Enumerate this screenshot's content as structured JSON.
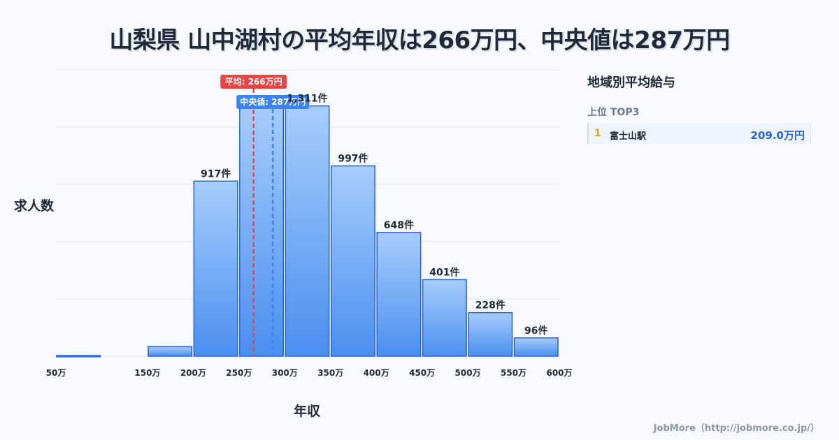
{
  "title": "山梨県 山中湖村の平均年収は266万円、中央値は287万円",
  "sidebar": {
    "title": "地域別平均給与",
    "subtitle": "上位 TOP3",
    "items": [
      {
        "rank": "1",
        "name": "富士山駅",
        "value": "209.0万円"
      }
    ]
  },
  "footer": "JobMore（http://jobmore.co.jp/）",
  "colors": {
    "bar_top": "#a7cdfb",
    "bar_bottom": "#4a8ff0",
    "bar_stroke": "#2563d9",
    "mean": "#e84545",
    "median": "#3b82f6"
  },
  "chart_data": {
    "type": "bar",
    "xlabel": "年収",
    "ylabel": "求人数",
    "x_ticks": [
      "50万",
      "150万",
      "200万",
      "250万",
      "300万",
      "350万",
      "400万",
      "450万",
      "500万",
      "550万",
      "600万"
    ],
    "bins": [
      {
        "from": 50,
        "to": 100,
        "value": 4,
        "label": ""
      },
      {
        "from": 100,
        "to": 150,
        "value": 0,
        "label": ""
      },
      {
        "from": 150,
        "to": 200,
        "value": 50,
        "label": ""
      },
      {
        "from": 200,
        "to": 250,
        "value": 917,
        "label": "917件"
      },
      {
        "from": 250,
        "to": 300,
        "value": 1324,
        "label": ""
      },
      {
        "from": 300,
        "to": 350,
        "value": 1311,
        "label": "1,311件"
      },
      {
        "from": 350,
        "to": 400,
        "value": 997,
        "label": "997件"
      },
      {
        "from": 400,
        "to": 450,
        "value": 648,
        "label": "648件"
      },
      {
        "from": 450,
        "to": 500,
        "value": 401,
        "label": "401件"
      },
      {
        "from": 500,
        "to": 550,
        "value": 228,
        "label": "228件"
      },
      {
        "from": 550,
        "to": 600,
        "value": 96,
        "label": "96件"
      }
    ],
    "mean": {
      "value": 266,
      "label": "平均: 266万円"
    },
    "median": {
      "value": 287,
      "label": "中央値: 287万円"
    },
    "xlim": [
      50,
      600
    ],
    "ylim": [
      0,
      1500
    ],
    "grid": true
  }
}
